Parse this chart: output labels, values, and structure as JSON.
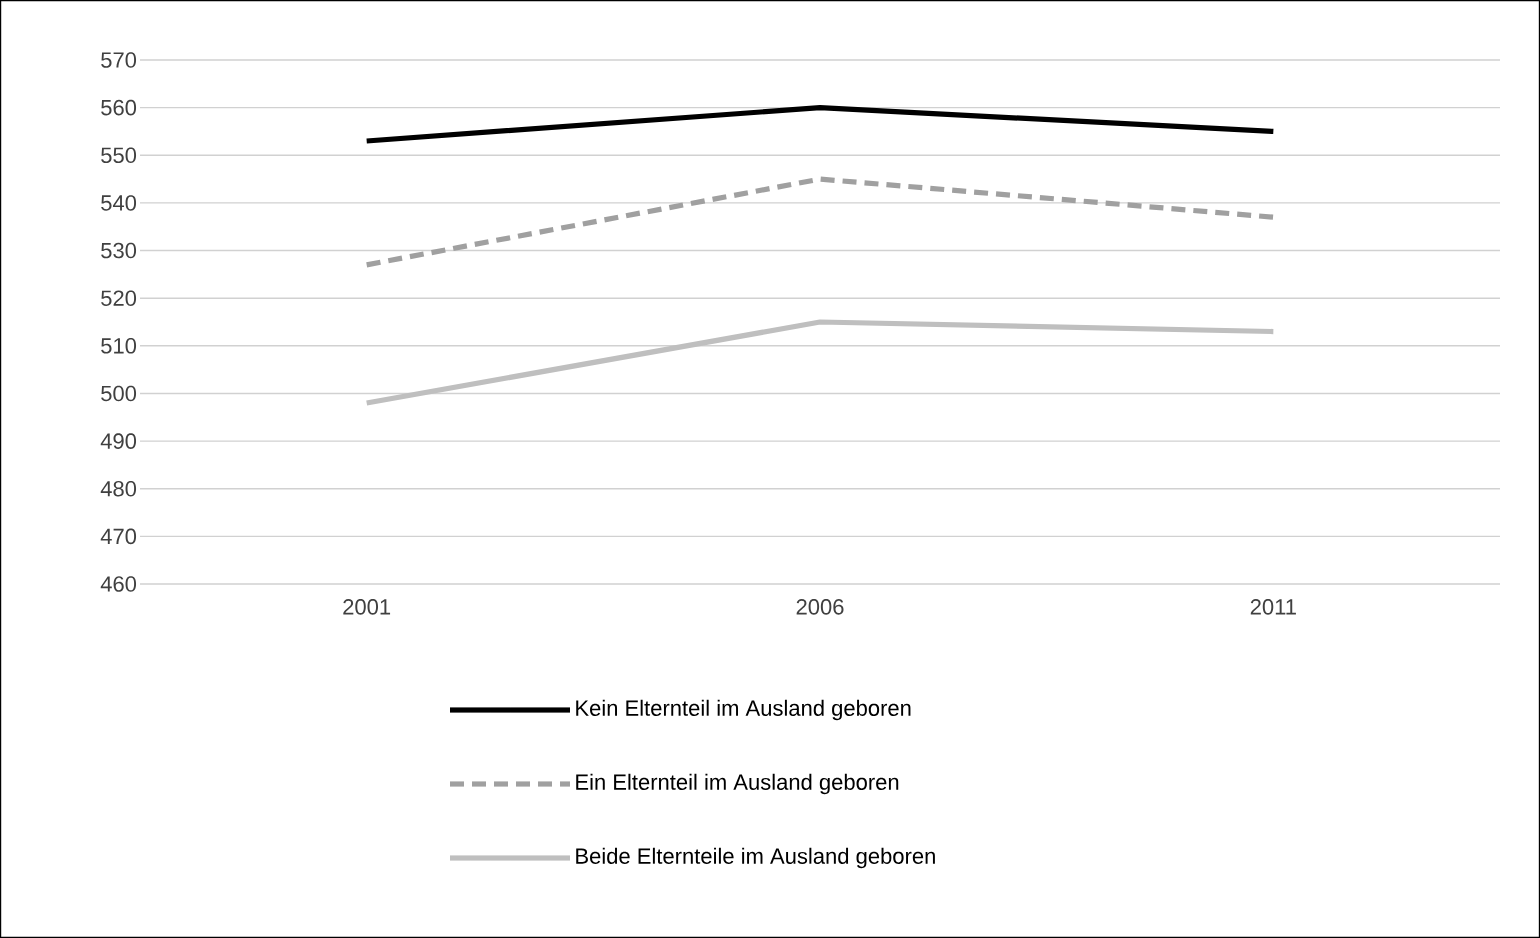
{
  "chart_data": {
    "type": "line",
    "categories": [
      "2001",
      "2006",
      "2011"
    ],
    "series": [
      {
        "name": "Kein Elternteil im Ausland geboren",
        "color": "#000000",
        "line_style": "solid",
        "values": [
          553,
          560,
          555
        ]
      },
      {
        "name": "Ein Elternteil im Ausland geboren",
        "color": "#a0a0a0",
        "line_style": "dashed",
        "values": [
          527,
          545,
          537
        ]
      },
      {
        "name": "Beide Elternteile im Ausland geboren",
        "color": "#bfbfbf",
        "line_style": "solid",
        "values": [
          498,
          515,
          513
        ]
      }
    ],
    "ylim": [
      460,
      570
    ],
    "yticks": [
      460,
      470,
      480,
      490,
      500,
      510,
      520,
      530,
      540,
      550,
      560,
      570
    ],
    "grid": "y",
    "legend": "bottom",
    "marker": "none"
  }
}
